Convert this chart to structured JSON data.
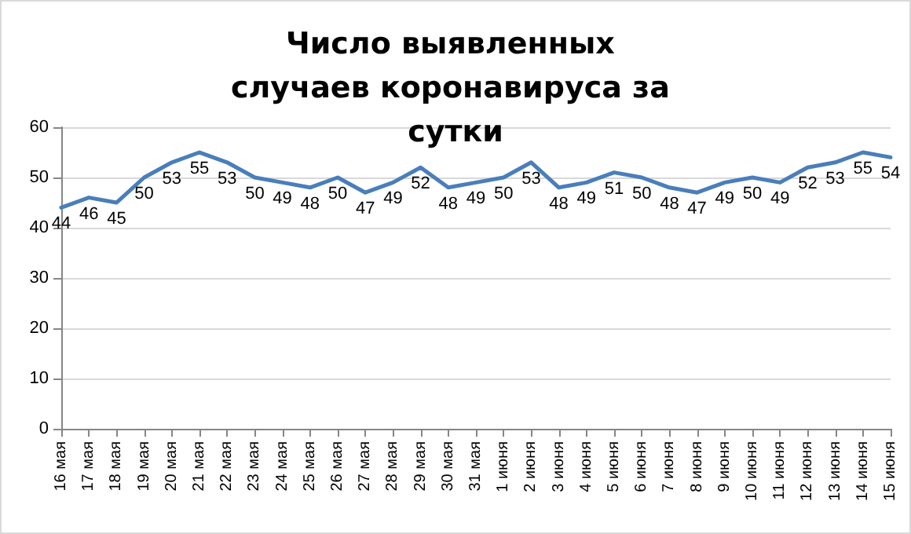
{
  "chart_data": {
    "type": "line",
    "title": "Число выявленных случаев коронавируса за сутки",
    "categories": [
      "16 мая",
      "17 мая",
      "18 мая",
      "19 мая",
      "20 мая",
      "21 мая",
      "22 мая",
      "23 мая",
      "24 мая",
      "25 мая",
      "26 мая",
      "27 мая",
      "28 мая",
      "29 мая",
      "30 мая",
      "31 мая",
      "1 июня",
      "2 июня",
      "3 июня",
      "4 июня",
      "5 июня",
      "6 июня",
      "7 июня",
      "8 июня",
      "9 июня",
      "10 июня",
      "11 июня",
      "12 июня",
      "13 июня",
      "14 июня",
      "15 июня"
    ],
    "values": [
      44,
      46,
      45,
      50,
      53,
      55,
      53,
      50,
      49,
      48,
      50,
      47,
      49,
      52,
      48,
      49,
      50,
      53,
      48,
      49,
      51,
      50,
      48,
      47,
      49,
      50,
      49,
      52,
      53,
      55,
      54
    ],
    "color": "#4a7ebb",
    "ylim": [
      0,
      60
    ],
    "yticks": [
      0,
      10,
      20,
      30,
      40,
      50,
      60
    ],
    "grid": "y",
    "data_labels": true,
    "marker": "none",
    "line_style": "solid"
  }
}
